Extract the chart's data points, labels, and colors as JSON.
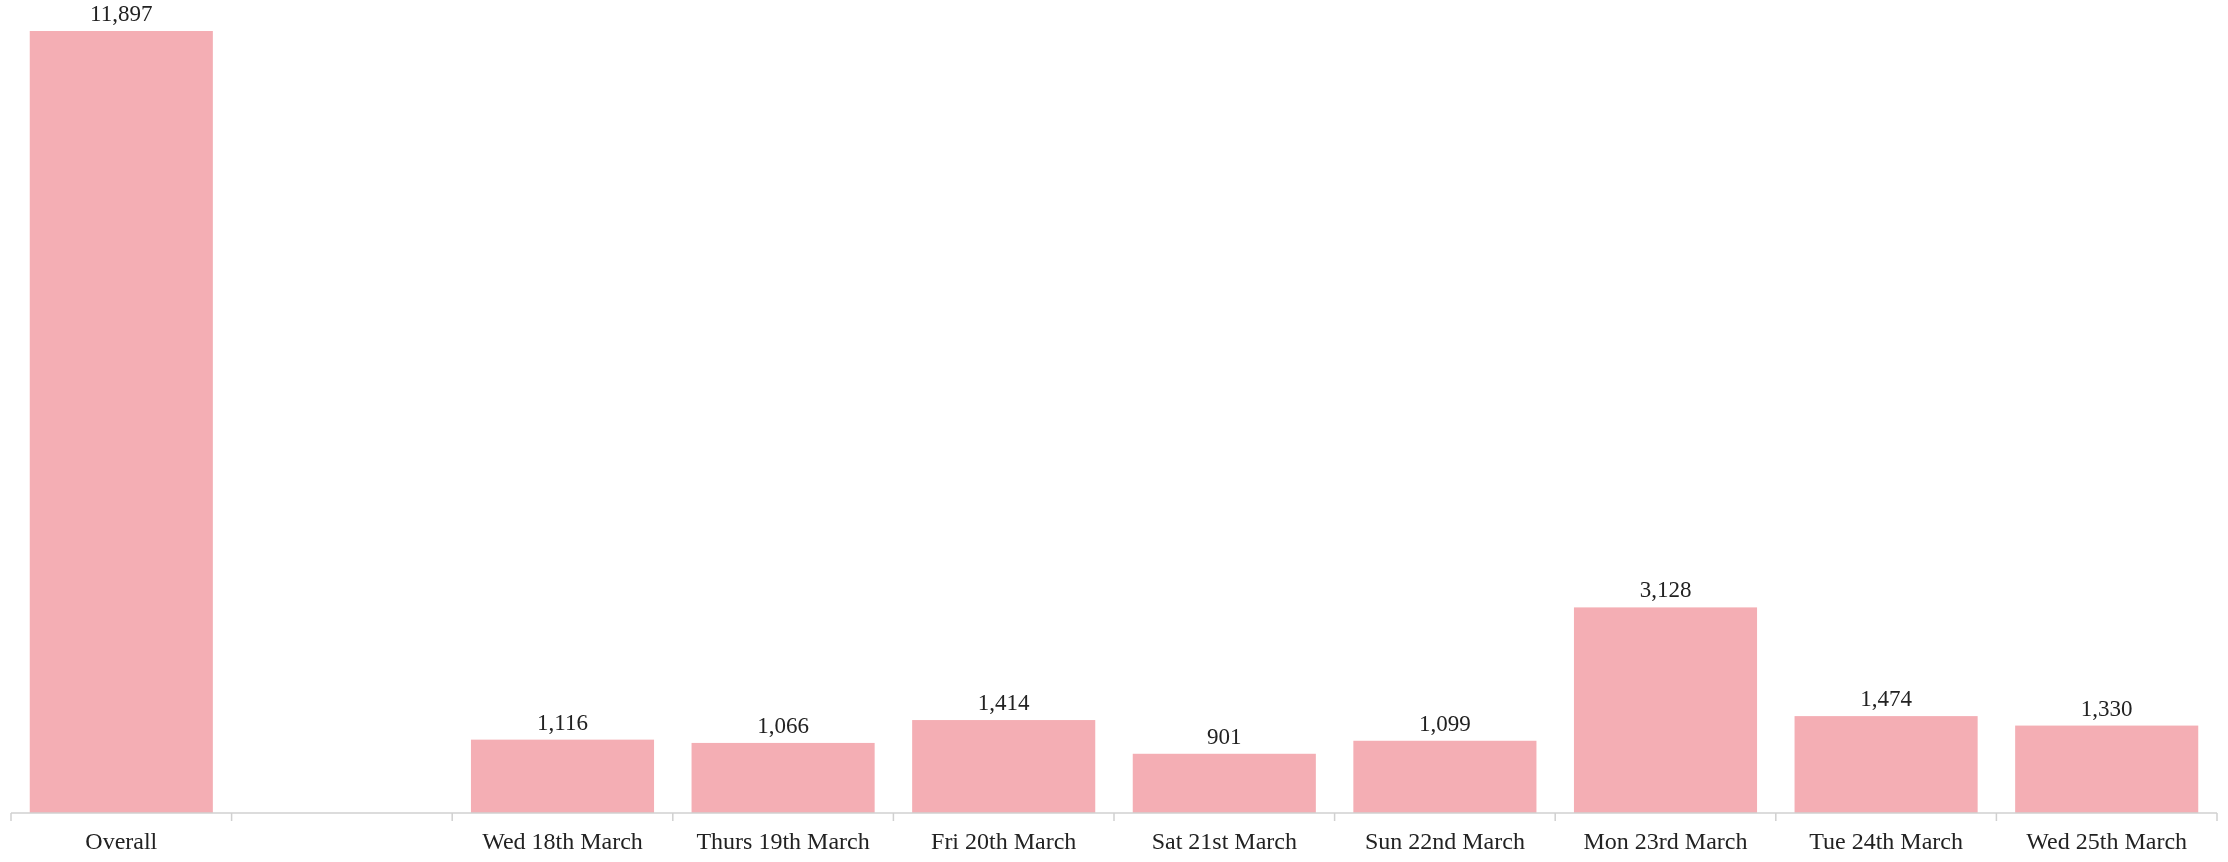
{
  "chart_data": {
    "type": "bar",
    "categories": [
      "Overall",
      null,
      "Wed 18th March",
      "Thurs 19th March",
      "Fri 20th March",
      "Sat 21st March",
      "Sun 22nd March",
      "Mon 23rd March",
      "Tue 24th March",
      "Wed 25th March"
    ],
    "values": [
      11897,
      null,
      1116,
      1066,
      1414,
      901,
      1099,
      3128,
      1474,
      1330
    ],
    "color": "#f4aeb4",
    "value_labels": [
      "11,897",
      null,
      "1,116",
      "1,066",
      "1,414",
      "901",
      "1,099",
      "3,128",
      "1,474",
      "1,330"
    ]
  }
}
